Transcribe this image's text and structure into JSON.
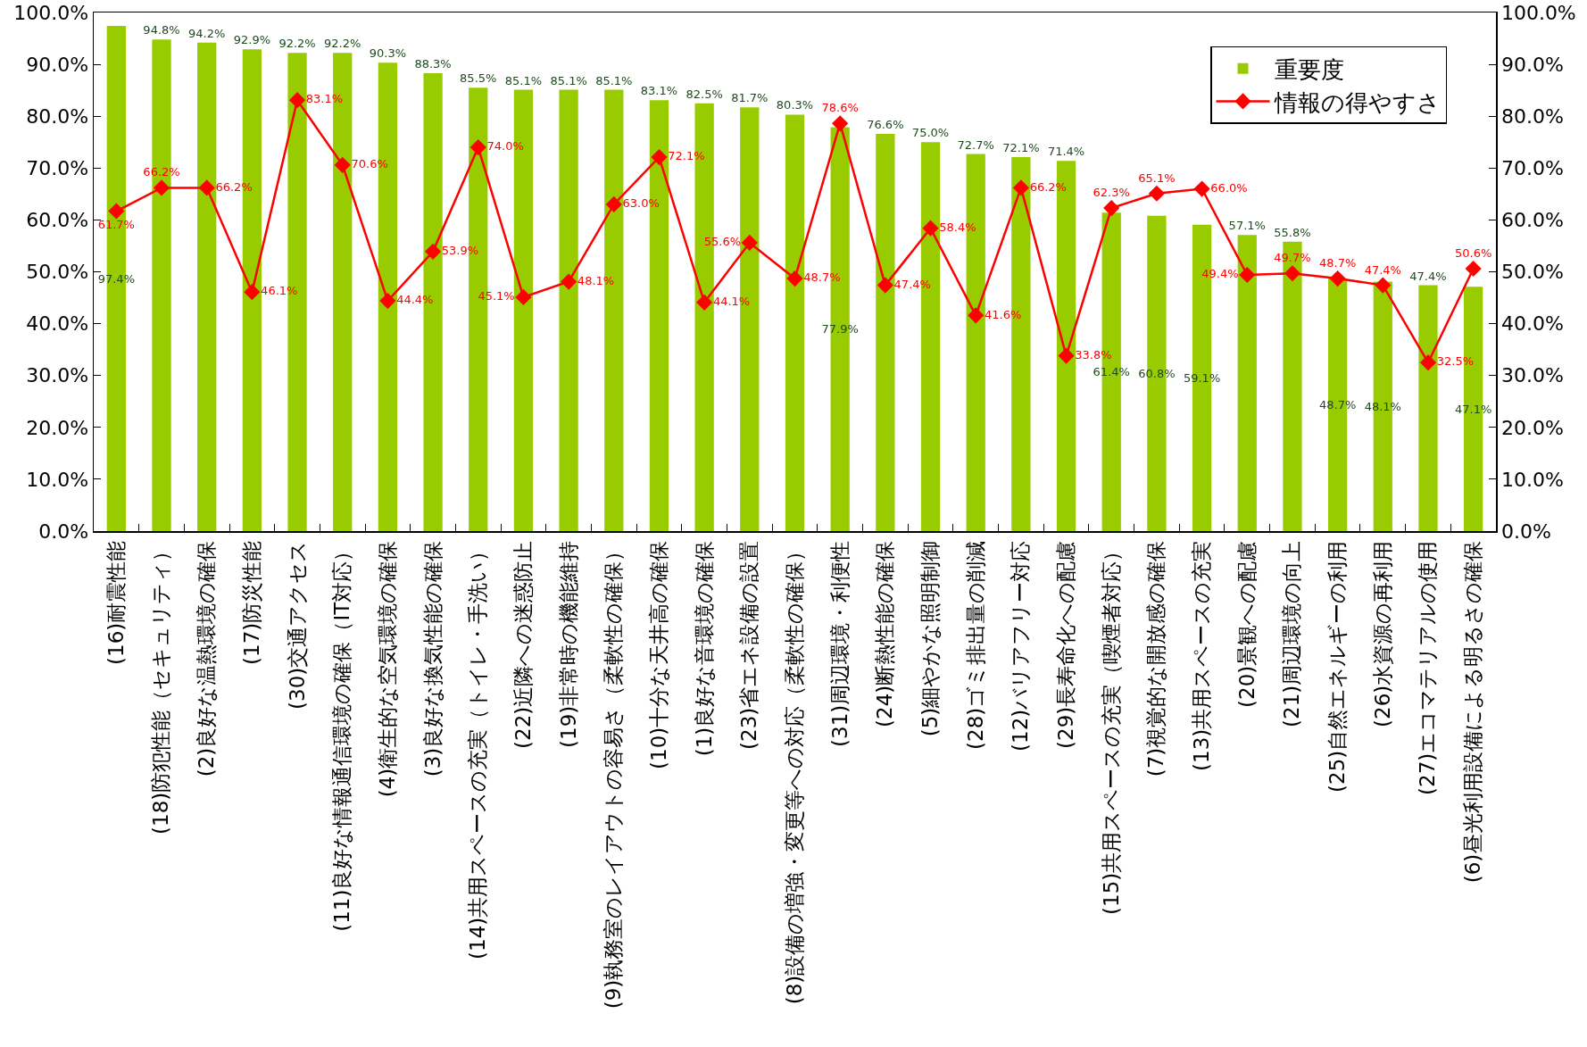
{
  "chart_data": {
    "type": "bar",
    "categories": [
      "(16)耐震性能",
      "(18)防犯性能（セキュリティ）",
      "(2)良好な温熱環境の確保",
      "(17)防災性能",
      "(30)交通アクセス",
      "(11)良好な情報通信環境の確保（IT対応）",
      "(4)衛生的な空気環境の確保",
      "(3)良好な換気性能の確保",
      "(14)共用スペースの充実（トイレ・手洗い）",
      "(22)近隣への迷惑防止",
      "(19)非常時の機能維持",
      "(9)執務室のレイアウトの容易さ（柔軟性の確保）",
      "(10)十分な天井高の確保",
      "(1)良好な音環境の確保",
      "(23)省エネ設備の設置",
      "(8)設備の増強・変更等への対応（柔軟性の確保）",
      "(31)周辺環境・利便性",
      "(24)断熱性能の確保",
      "(5)細やかな照明制御",
      "(28)ゴミ排出量の削減",
      "(12)バリアフリー対応",
      "(29)長寿命化への配慮",
      "(15)共用スペースの充実（喫煙者対応）",
      "(7)視覚的な開放感の確保",
      "(13)共用スペースの充実",
      "(20)景観への配慮",
      "(21)周辺環境の向上",
      "(25)自然エネルギーの利用",
      "(26)水資源の再利用",
      "(27)エコマテリアルの使用",
      "(6)昼光利用設備による明るさの確保"
    ],
    "series": [
      {
        "name": "重要度",
        "color": "#99cc00",
        "values": [
          97.4,
          94.8,
          94.2,
          92.9,
          92.2,
          92.2,
          90.3,
          88.3,
          85.5,
          85.1,
          85.1,
          85.1,
          83.1,
          82.5,
          81.7,
          80.3,
          77.9,
          76.6,
          75.0,
          72.7,
          72.1,
          71.4,
          61.4,
          60.8,
          59.1,
          57.1,
          55.8,
          48.7,
          48.1,
          47.4,
          47.1
        ],
        "value_labels": [
          "97.4%",
          "94.8%",
          "94.2%",
          "92.9%",
          "92.2%",
          "92.2%",
          "90.3%",
          "88.3%",
          "85.5%",
          "85.1%",
          "85.1%",
          "85.1%",
          "83.1%",
          "82.5%",
          "81.7%",
          "80.3%",
          "77.9%",
          "76.6%",
          "75.0%",
          "72.7%",
          "72.1%",
          "71.4%",
          "61.4%",
          "60.8%",
          "59.1%",
          "57.1%",
          "55.8%",
          "48.7%",
          "48.1%",
          "47.4%",
          "47.1%"
        ]
      },
      {
        "name": "情報の得やすさ",
        "type": "line",
        "color": "#ff0000",
        "axis": "y2",
        "values": [
          61.7,
          66.2,
          66.2,
          46.1,
          83.1,
          70.6,
          44.4,
          53.9,
          74.0,
          45.1,
          48.1,
          63.0,
          72.1,
          44.1,
          55.6,
          48.7,
          78.6,
          47.4,
          58.4,
          41.6,
          66.2,
          33.8,
          62.3,
          65.1,
          66.0,
          49.4,
          49.7,
          48.7,
          47.4,
          32.5,
          50.6
        ],
        "value_labels": [
          "61.7%",
          "66.2%",
          "66.2%",
          "46.1%",
          "83.1%",
          "70.6%",
          "44.4%",
          "53.9%",
          "74.0%",
          "45.1%",
          "48.1%",
          "63.0%",
          "72.1%",
          "44.1%",
          "55.6%",
          "48.7%",
          "78.6%",
          "47.4%",
          "58.4%",
          "41.6%",
          "66.2%",
          "33.8%",
          "62.3%",
          "65.1%",
          "66.0%",
          "49.4%",
          "49.7%",
          "48.7%",
          "47.4%",
          "32.5%",
          "50.6%"
        ]
      }
    ],
    "ylim": [
      0,
      100
    ],
    "yticks": [
      {
        "value": 0,
        "label": "0.0%"
      },
      {
        "value": 10,
        "label": "10.0%"
      },
      {
        "value": 20,
        "label": "20.0%"
      },
      {
        "value": 30,
        "label": "30.0%"
      },
      {
        "value": 40,
        "label": "40.0%"
      },
      {
        "value": 50,
        "label": "50.0%"
      },
      {
        "value": 60,
        "label": "60.0%"
      },
      {
        "value": 70,
        "label": "70.0%"
      },
      {
        "value": 80,
        "label": "80.0%"
      },
      {
        "value": 90,
        "label": "90.0%"
      },
      {
        "value": 100,
        "label": "100.0%"
      }
    ],
    "y2lim": [
      0,
      100
    ],
    "y2ticks": [
      {
        "value": 0,
        "label": "0.0%"
      },
      {
        "value": 10,
        "label": "10.0%"
      },
      {
        "value": 20,
        "label": "20.0%"
      },
      {
        "value": 30,
        "label": "30.0%"
      },
      {
        "value": 40,
        "label": "40.0%"
      },
      {
        "value": 50,
        "label": "50.0%"
      },
      {
        "value": 60,
        "label": "60.0%"
      },
      {
        "value": 70,
        "label": "70.0%"
      },
      {
        "value": 80,
        "label": "80.0%"
      },
      {
        "value": 90,
        "label": "90.0%"
      },
      {
        "value": 100,
        "label": "100.0%"
      }
    ],
    "legend": "top right",
    "marker": "diamond",
    "line_style": "solid"
  }
}
